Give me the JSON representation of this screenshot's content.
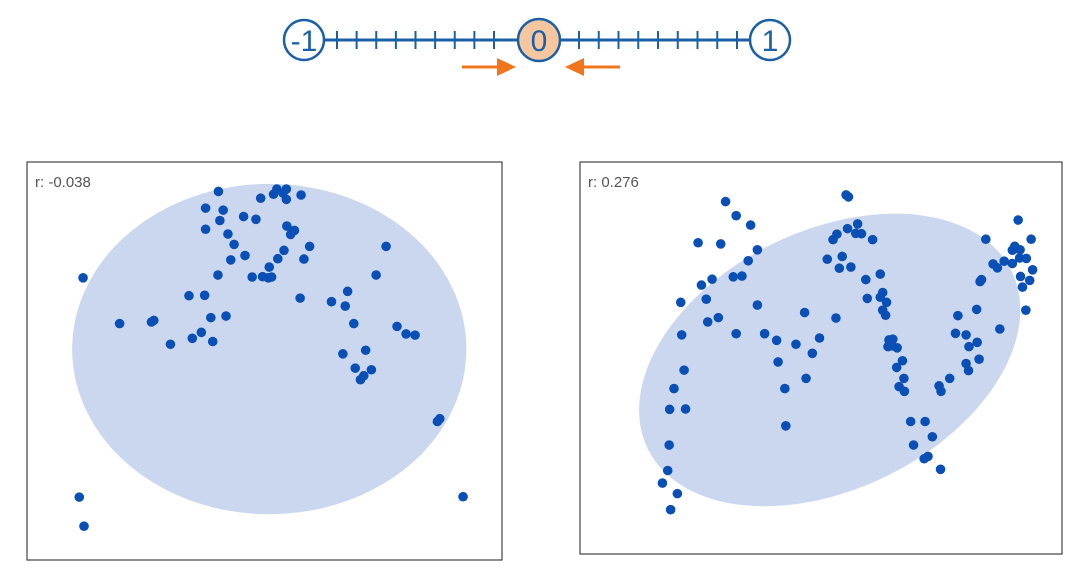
{
  "colors": {
    "axis": "#1b5fa6",
    "zero_fill": "#f6c79f",
    "arrow": "#f0751d",
    "ellipse": "#cbd7ef",
    "point": "#0a4fb5",
    "frame": "#444444"
  },
  "number_line": {
    "left_label": "-1",
    "center_label": "0",
    "right_label": "1",
    "ticks_per_side": 9,
    "arrows": [
      "arrow-right-icon",
      "arrow-left-icon"
    ]
  },
  "panels": [
    {
      "r_label": "r: -0.038",
      "chart_data": {
        "type": "scatter",
        "xlim": [
          0,
          100
        ],
        "ylim": [
          0,
          100
        ],
        "ellipse": {
          "cx": 51,
          "cy": 53,
          "rx": 41.5,
          "ry": 41.5,
          "angle": 0
        },
        "points": [
          [
            11.8,
            70.9
          ],
          [
            11,
            15.8
          ],
          [
            12,
            8.5
          ],
          [
            19.5,
            59.4
          ],
          [
            26.7,
            60.2
          ],
          [
            26.2,
            59.8
          ],
          [
            30.2,
            54.2
          ],
          [
            34.8,
            55.7
          ],
          [
            36.7,
            57.2
          ],
          [
            39.1,
            54.9
          ],
          [
            34.1,
            66.4
          ],
          [
            37.4,
            66.5
          ],
          [
            38.7,
            60.9
          ],
          [
            41.9,
            61.3
          ],
          [
            40.2,
            71.6
          ],
          [
            42.9,
            75.4
          ],
          [
            45.9,
            76.5
          ],
          [
            43.6,
            79.3
          ],
          [
            42.3,
            81.9
          ],
          [
            37.6,
            83.1
          ],
          [
            40.6,
            85.3
          ],
          [
            37.6,
            88.4
          ],
          [
            40.3,
            92.6
          ],
          [
            41.3,
            87.9
          ],
          [
            45.6,
            86.3
          ],
          [
            47.4,
            71.1
          ],
          [
            49.6,
            71.2
          ],
          [
            50.8,
            70.9
          ],
          [
            51,
            73.6
          ],
          [
            51.5,
            71.1
          ],
          [
            52.8,
            75.7
          ],
          [
            54.1,
            77.8
          ],
          [
            54.7,
            83.9
          ],
          [
            55.5,
            81.8
          ],
          [
            53.9,
            92.2
          ],
          [
            57.7,
            91.7
          ],
          [
            54.6,
            90.6
          ],
          [
            56.3,
            82.8
          ],
          [
            58.3,
            75.6
          ],
          [
            49.2,
            90.9
          ],
          [
            51.9,
            91.9
          ],
          [
            52.6,
            93.2
          ],
          [
            54.6,
            93.2
          ],
          [
            48.2,
            85.6
          ],
          [
            59.5,
            78.8
          ],
          [
            57.5,
            65.8
          ],
          [
            64.1,
            64.9
          ],
          [
            67,
            63.8
          ],
          [
            68.8,
            59.4
          ],
          [
            66.5,
            51.8
          ],
          [
            67.5,
            67.5
          ],
          [
            71.3,
            52.7
          ],
          [
            69.1,
            48.2
          ],
          [
            70.2,
            45.3
          ],
          [
            70.9,
            46.3
          ],
          [
            72.5,
            47.8
          ],
          [
            73.5,
            71.6
          ],
          [
            75.6,
            78.8
          ],
          [
            77.9,
            58.7
          ],
          [
            79.8,
            56.8
          ],
          [
            81.7,
            56.5
          ],
          [
            86.4,
            34.8
          ],
          [
            86.9,
            35.5
          ],
          [
            91.8,
            15.9
          ]
        ]
      }
    },
    {
      "r_label": "r: 0.276",
      "chart_data": {
        "type": "scatter",
        "xlim": [
          0,
          100
        ],
        "ylim": [
          0,
          100
        ],
        "ellipse": {
          "cx": 51.8,
          "cy": 49.5,
          "rx": 42,
          "ry": 33,
          "angle": -26
        },
        "points": [
          [
            17.1,
            18.1
          ],
          [
            18.8,
            11.3
          ],
          [
            20.2,
            15.4
          ],
          [
            18.2,
            21.3
          ],
          [
            18.5,
            27.8
          ],
          [
            18.6,
            36.9
          ],
          [
            21.9,
            37
          ],
          [
            19.5,
            42.2
          ],
          [
            21.6,
            46.9
          ],
          [
            21.1,
            55.9
          ],
          [
            20.9,
            64.2
          ],
          [
            26.5,
            59.2
          ],
          [
            26.2,
            65
          ],
          [
            25.2,
            68.6
          ],
          [
            24.5,
            79.4
          ],
          [
            28.7,
            60.3
          ],
          [
            27.4,
            70.1
          ],
          [
            29.2,
            79.1
          ],
          [
            31.8,
            70.7
          ],
          [
            32.4,
            56.2
          ],
          [
            33.6,
            70.9
          ],
          [
            34.9,
            74.8
          ],
          [
            32.4,
            86.3
          ],
          [
            30.2,
            89.9
          ],
          [
            35.4,
            83.9
          ],
          [
            36.8,
            77.6
          ],
          [
            38.3,
            56.2
          ],
          [
            36.8,
            63.5
          ],
          [
            40.8,
            54.5
          ],
          [
            41.1,
            49
          ],
          [
            42.5,
            42.2
          ],
          [
            42.7,
            32.7
          ],
          [
            44.8,
            53.5
          ],
          [
            46.6,
            61.6
          ],
          [
            46.9,
            44.8
          ],
          [
            48.2,
            51.2
          ],
          [
            49.7,
            55.1
          ],
          [
            53.1,
            60.2
          ],
          [
            51.3,
            75.2
          ],
          [
            52.5,
            80.2
          ],
          [
            53.8,
            72.9
          ],
          [
            54.4,
            75.9
          ],
          [
            55.5,
            83
          ],
          [
            53.3,
            81.6
          ],
          [
            55.7,
            91.1
          ],
          [
            55.2,
            91.6
          ],
          [
            57.6,
            84.2
          ],
          [
            57.2,
            81.8
          ],
          [
            58.4,
            81.7
          ],
          [
            56.2,
            73.2
          ],
          [
            59.3,
            70
          ],
          [
            59.6,
            65.2
          ],
          [
            60.7,
            80.2
          ],
          [
            62.3,
            71.4
          ],
          [
            62.3,
            65.5
          ],
          [
            63.4,
            60.9
          ],
          [
            63.9,
            52.9
          ],
          [
            64.1,
            54.6
          ],
          [
            66.9,
            49.3
          ],
          [
            67.3,
            41.5
          ],
          [
            67.2,
            44.8
          ],
          [
            64.9,
            54.8
          ],
          [
            65.8,
            52.6
          ],
          [
            62.8,
            66.7
          ],
          [
            63.6,
            64.2
          ],
          [
            62.8,
            62.2
          ],
          [
            64.8,
            53.1
          ],
          [
            66.2,
            42.7
          ],
          [
            65.7,
            47.6
          ],
          [
            68.6,
            33.8
          ],
          [
            69.2,
            27.8
          ],
          [
            71.6,
            33.8
          ],
          [
            72.2,
            24.9
          ],
          [
            74.8,
            21.6
          ],
          [
            71.4,
            24.3
          ],
          [
            73.1,
            29.9
          ],
          [
            74.5,
            42.9
          ],
          [
            74.9,
            41.5
          ],
          [
            76.7,
            44.8
          ],
          [
            77.9,
            56.3
          ],
          [
            78.4,
            60.8
          ],
          [
            80.1,
            55.9
          ],
          [
            80.7,
            52.9
          ],
          [
            82.4,
            54
          ],
          [
            82.8,
            49.7
          ],
          [
            80.6,
            46.8
          ],
          [
            80.1,
            48.6
          ],
          [
            82.3,
            62.4
          ],
          [
            83,
            69.5
          ],
          [
            83.3,
            70
          ],
          [
            85.7,
            74
          ],
          [
            86.6,
            73
          ],
          [
            89.7,
            77.5
          ],
          [
            91.2,
            75.5
          ],
          [
            91.3,
            77.6
          ],
          [
            92.6,
            75.4
          ],
          [
            91.4,
            70.8
          ],
          [
            90.2,
            78.5
          ],
          [
            93.3,
            69.8
          ],
          [
            89.7,
            74.1
          ],
          [
            84.2,
            80.3
          ],
          [
            91.8,
            68.1
          ],
          [
            92.5,
            62.2
          ],
          [
            87.1,
            57.4
          ],
          [
            93.9,
            72.5
          ],
          [
            90.9,
            85.2
          ],
          [
            93.6,
            80.3
          ],
          [
            88,
            74.7
          ]
        ]
      }
    }
  ]
}
